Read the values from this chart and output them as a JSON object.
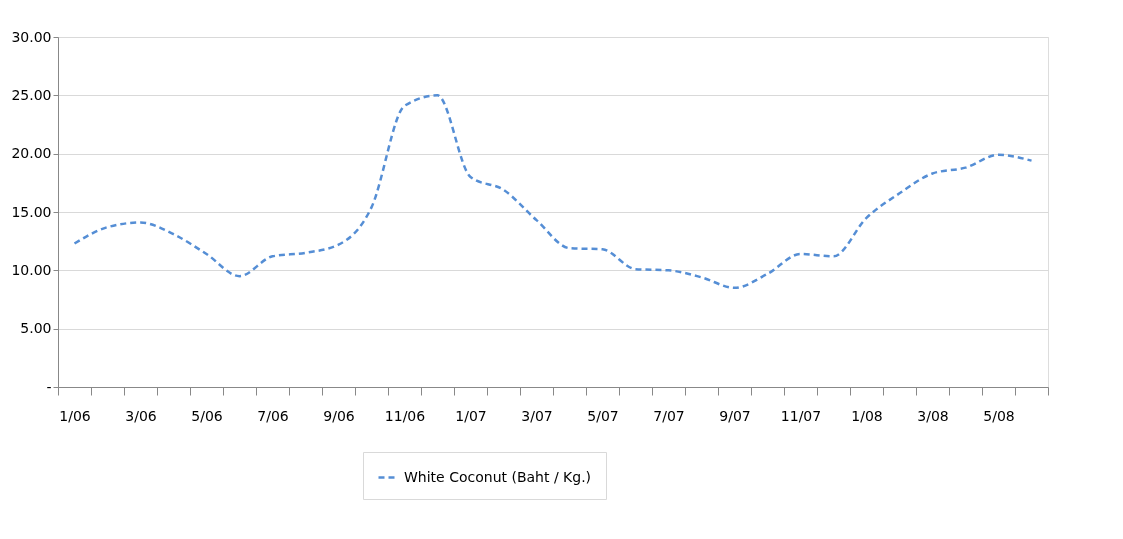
{
  "chart_data": {
    "type": "line",
    "categories": [
      "1/06",
      null,
      "3/06",
      null,
      "5/06",
      null,
      "7/06",
      null,
      "9/06",
      null,
      "11/06",
      null,
      "1/07",
      null,
      "3/07",
      null,
      "5/07",
      null,
      "7/07",
      null,
      "9/07",
      null,
      "11/07",
      null,
      "1/08",
      null,
      "3/08",
      null,
      "5/08",
      null
    ],
    "series": [
      {
        "name": "White Coconut (Baht / Kg.)",
        "color": "#558ed5",
        "values": [
          12.3,
          13.7,
          14.1,
          13.1,
          11.4,
          9.5,
          11.2,
          11.5,
          12.2,
          15.4,
          24.1,
          25.0,
          18.0,
          16.9,
          14.3,
          11.9,
          11.8,
          10.1,
          10.0,
          9.4,
          8.5,
          9.7,
          11.4,
          11.2,
          14.5,
          16.6,
          18.3,
          18.8,
          19.9,
          19.4
        ]
      }
    ],
    "ylim": [
      0,
      30
    ],
    "yticks": [
      {
        "value": 0,
        "label": "-"
      },
      {
        "value": 5,
        "label": "5.00"
      },
      {
        "value": 10,
        "label": "10.00"
      },
      {
        "value": 15,
        "label": "15.00"
      },
      {
        "value": 20,
        "label": "20.00"
      },
      {
        "value": 25,
        "label": "25.00"
      },
      {
        "value": 30,
        "label": "30.00"
      }
    ],
    "grid": "y",
    "legend": "bottom",
    "marker": "none",
    "line_style": "dashed"
  }
}
